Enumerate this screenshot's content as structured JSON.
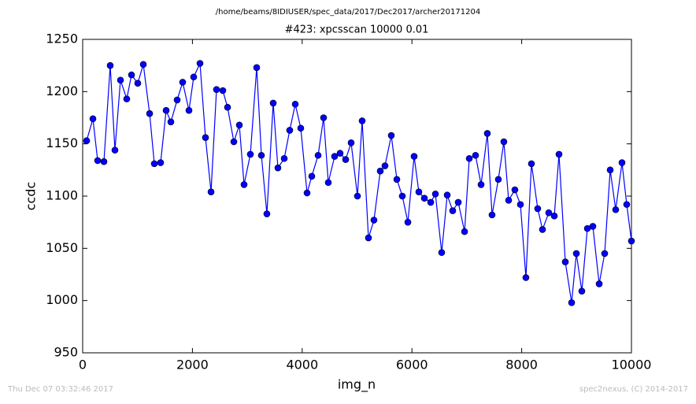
{
  "chart_data": {
    "type": "line",
    "header": "/home/beams/8IDIUSER/spec_data/2017/Dec2017/archer20171204",
    "title": "#423: xpcsscan 10000 0.01",
    "xlabel": "img_n",
    "ylabel": "ccdc",
    "footer_left": "Thu Dec 07 03:32:46 2017",
    "footer_right": "spec2nexus, (C) 2014-2017",
    "xlim": [
      0,
      10000
    ],
    "ylim": [
      950,
      1250
    ],
    "xticks": [
      0,
      2000,
      4000,
      6000,
      8000,
      10000
    ],
    "yticks": [
      950,
      1000,
      1050,
      1100,
      1150,
      1200,
      1250
    ],
    "grid": false,
    "series": [
      {
        "name": "ccdc",
        "color": "#0000ff",
        "x": [
          72,
          187,
          273,
          387,
          502,
          588,
          689,
          803,
          890,
          1004,
          1105,
          1220,
          1306,
          1420,
          1521,
          1607,
          1722,
          1822,
          1937,
          2023,
          2138,
          2238,
          2339,
          2439,
          2554,
          2640,
          2755,
          2855,
          2941,
          3056,
          3171,
          3257,
          3357,
          3472,
          3558,
          3673,
          3773,
          3874,
          3974,
          4089,
          4175,
          4290,
          4390,
          4476,
          4591,
          4691,
          4792,
          4892,
          5007,
          5093,
          5208,
          5308,
          5423,
          5509,
          5624,
          5725,
          5825,
          5926,
          6040,
          6126,
          6227,
          6342,
          6428,
          6542,
          6643,
          6743,
          6844,
          6959,
          7045,
          7159,
          7260,
          7374,
          7460,
          7575,
          7675,
          7762,
          7876,
          7977,
          8077,
          8178,
          8292,
          8379,
          8493,
          8594,
          8680,
          8795,
          8910,
          8996,
          9096,
          9197,
          9297,
          9412,
          9512,
          9613,
          9713,
          9828,
          9914,
          10000
        ],
        "values": [
          1153,
          1174,
          1134,
          1133,
          1225,
          1144,
          1211,
          1193,
          1216,
          1208,
          1226,
          1179,
          1131,
          1132,
          1182,
          1171,
          1192,
          1209,
          1182,
          1214,
          1227,
          1156,
          1104,
          1202,
          1201,
          1185,
          1152,
          1168,
          1111,
          1140,
          1223,
          1139,
          1083,
          1189,
          1127,
          1136,
          1163,
          1188,
          1165,
          1103,
          1119,
          1139,
          1175,
          1113,
          1138,
          1141,
          1135,
          1151,
          1100,
          1172,
          1060,
          1077,
          1124,
          1129,
          1158,
          1116,
          1100,
          1075,
          1138,
          1104,
          1098,
          1094,
          1102,
          1046,
          1101,
          1086,
          1094,
          1066,
          1136,
          1139,
          1111,
          1160,
          1082,
          1116,
          1152,
          1096,
          1106,
          1092,
          1022,
          1131,
          1088,
          1068,
          1084,
          1081,
          1140,
          1037,
          998,
          1045,
          1009,
          1069,
          1071,
          1016,
          1045,
          1125,
          1087,
          1132,
          1092,
          1057
        ]
      }
    ]
  }
}
